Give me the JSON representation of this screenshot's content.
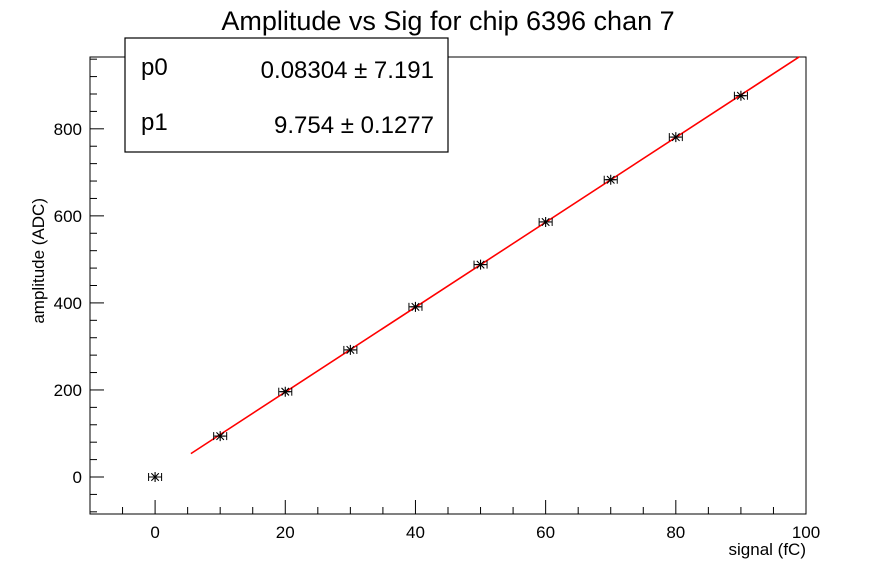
{
  "chart_data": {
    "type": "scatter",
    "title": "Amplitude vs Sig for chip 6396 chan 7",
    "xlabel": "signal (fC)",
    "ylabel": "amplitude (ADC)",
    "xlim": [
      -10,
      100
    ],
    "ylim": [
      -85,
      965
    ],
    "x_ticks": [
      0,
      20,
      40,
      60,
      80,
      100
    ],
    "y_ticks": [
      0,
      200,
      400,
      600,
      800
    ],
    "grid": false,
    "series": [
      {
        "marker_color": "#000000",
        "points": [
          {
            "x": 0,
            "y": 0
          },
          {
            "x": 10,
            "y": 94
          },
          {
            "x": 20,
            "y": 196
          },
          {
            "x": 30,
            "y": 292
          },
          {
            "x": 40,
            "y": 391
          },
          {
            "x": 50,
            "y": 488
          },
          {
            "x": 60,
            "y": 586
          },
          {
            "x": 70,
            "y": 683
          },
          {
            "x": 80,
            "y": 781
          },
          {
            "x": 90,
            "y": 876
          }
        ],
        "x_error": 1
      }
    ],
    "fit": {
      "color": "#ff0000",
      "x_range": [
        5.5,
        99
      ],
      "p0": 0.08304,
      "p1": 9.754
    },
    "stats_box": {
      "position": "top-left",
      "rows": [
        {
          "name": "p0",
          "value": "0.08304 ± 7.191"
        },
        {
          "name": "p1",
          "value": "9.754 ± 0.1277"
        }
      ]
    }
  }
}
